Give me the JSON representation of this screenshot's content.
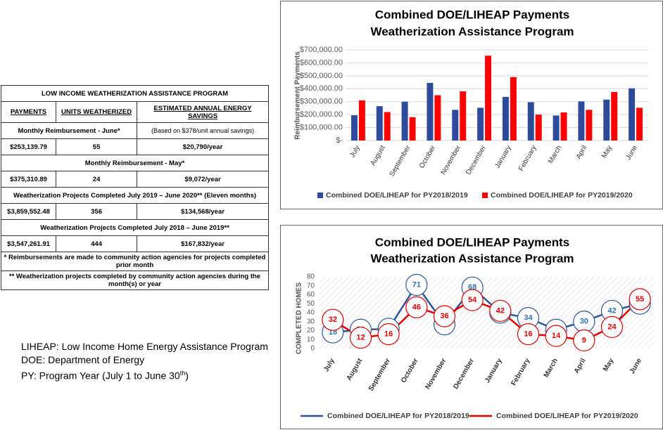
{
  "table": {
    "title": "LOW INCOME WEATHERIZATION ASSISTANCE PROGRAM",
    "headers": [
      "PAYMENTS",
      "UNITS WEATHERIZED",
      "ESTIMATED ANNUAL ENERGY SAVINGS"
    ],
    "sections": [
      {
        "label": "Monthly Reimbursement - June*",
        "note": "(Based on $378/unit annual savings)",
        "row": [
          "$253,139.79",
          "55",
          "$20,790/year"
        ]
      },
      {
        "label": "Monthly Reimbursement - May*",
        "row": [
          "$375,310.89",
          "24",
          "$9,072/year"
        ]
      },
      {
        "label": "Weatherization Projects Completed July 2019 – June 2020** (Eleven months)",
        "row": [
          "$3,859,552.48",
          "356",
          "$134,568/year"
        ]
      },
      {
        "label": "Weatherization Projects Completed July 2018 – June 2019**",
        "row": [
          "$3,547,261.91",
          "444",
          "$167,832/year"
        ]
      }
    ],
    "footnotes": [
      "* Reimbursements are made to community action agencies for projects completed prior month",
      "** Weatherization projects completed by community action agencies during the month(s) or year"
    ]
  },
  "notes": {
    "lines": [
      "LIHEAP: Low Income Home Energy Assistance Program",
      "DOE: Department of Energy"
    ],
    "py": {
      "text": "PY: Program Year (July 1 to June 30",
      "sup": "th",
      "end": ")"
    }
  },
  "chart_data": [
    {
      "type": "bar",
      "title": "Combined DOE/LIHEAP Payments",
      "subtitle": "Weatherization Assistance Program",
      "y_label": "Reimbursement Payments",
      "categories": [
        "July",
        "August",
        "September",
        "October",
        "November",
        "December",
        "January",
        "February",
        "March",
        "April",
        "May",
        "June"
      ],
      "series": [
        {
          "name": "Combined DOE/LIHEAP for PY2018/2019",
          "color": "#2e4a9b",
          "values": [
            195000,
            265000,
            300000,
            445000,
            237000,
            253000,
            337000,
            296000,
            193000,
            302000,
            316000,
            403000
          ]
        },
        {
          "name": "Combined DOE/LIHEAP for PY2019/2020",
          "color": "#ff0000",
          "values": [
            310000,
            220000,
            180000,
            350000,
            380000,
            655000,
            490000,
            200000,
            217000,
            237000,
            375000,
            253000
          ]
        }
      ],
      "ylim": [
        0,
        700000
      ],
      "yticks": [
        {
          "value": 0,
          "label": "$-"
        },
        {
          "value": 100000,
          "label": "$100,000.00"
        },
        {
          "value": 200000,
          "label": "$200,000.00"
        },
        {
          "value": 300000,
          "label": "$300,000.00"
        },
        {
          "value": 400000,
          "label": "$400,000.00"
        },
        {
          "value": 500000,
          "label": "$500,000.00"
        },
        {
          "value": 600000,
          "label": "$600,000.00"
        },
        {
          "value": 700000,
          "label": "$700,000.00"
        }
      ],
      "grid": true
    },
    {
      "type": "line",
      "title": "Combined DOE/LIHEAP Payments",
      "subtitle": "Weatherization Assistance Program",
      "y_label": "COMPLETED HOMES",
      "categories": [
        "July",
        "August",
        "September",
        "October",
        "November",
        "December",
        "January",
        "February",
        "March",
        "April",
        "May",
        "June"
      ],
      "series": [
        {
          "name": "Combined DOE/LIHEAP for PY2018/2019",
          "color": "#2f5597",
          "label_color": "#2e75b6",
          "values": [
            18,
            21,
            22,
            71,
            27,
            68,
            40,
            34,
            21,
            30,
            42,
            50
          ]
        },
        {
          "name": "Combined DOE/LIHEAP for PY2019/2020",
          "color": "#e00000",
          "label_color": "#e00000",
          "values": [
            32,
            12,
            16,
            46,
            36,
            54,
            42,
            16,
            14,
            9,
            24,
            55
          ]
        }
      ],
      "ylim": [
        0,
        80
      ],
      "yticks": [
        0,
        10,
        20,
        30,
        40,
        50,
        60,
        70,
        80
      ],
      "grid": false
    }
  ]
}
